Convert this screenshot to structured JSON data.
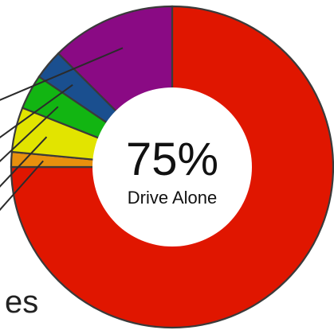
{
  "chart_data": {
    "type": "pie",
    "variant": "donut",
    "center_value": "75%",
    "center_label": "Drive Alone",
    "clipped_text": "es",
    "slices": [
      {
        "label": "Drive Alone",
        "value": 75,
        "color": "#e01600"
      },
      {
        "label": "",
        "value": 1.5,
        "color": "#e8900e"
      },
      {
        "label": "",
        "value": 4.5,
        "color": "#e2e400"
      },
      {
        "label": "",
        "value": 3.5,
        "color": "#12b512"
      },
      {
        "label": "",
        "value": 3,
        "color": "#1a4f8f"
      },
      {
        "label": "",
        "value": 12.5,
        "color": "#8a0a84"
      }
    ]
  }
}
